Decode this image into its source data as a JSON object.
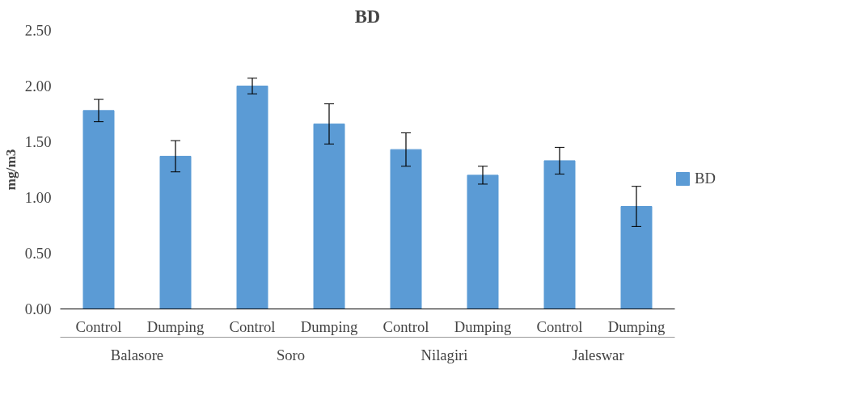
{
  "chart_data": {
    "type": "bar",
    "title": "BD",
    "ylabel": "mg/m3",
    "categories": [
      "Control",
      "Dumping",
      "Control",
      "Dumping",
      "Control",
      "Dumping",
      "Control",
      "Dumping"
    ],
    "annotations": [
      "Balasore",
      "Soro",
      "Nilagiri",
      "Jaleswar"
    ],
    "series": [
      {
        "name": "BD",
        "color": "#5b9bd5",
        "values": [
          1.78,
          1.37,
          2.0,
          1.66,
          1.43,
          1.2,
          1.33,
          0.92
        ],
        "errors": [
          0.1,
          0.14,
          0.07,
          0.18,
          0.15,
          0.08,
          0.12,
          0.18
        ]
      }
    ],
    "ylim": [
      0,
      2.5
    ],
    "yticks": [
      {
        "value": 0,
        "label": "0.00"
      },
      {
        "value": 0.5,
        "label": "0.50"
      },
      {
        "value": 1,
        "label": "1.00"
      },
      {
        "value": 1.5,
        "label": "1.50"
      },
      {
        "value": 2,
        "label": "2.00"
      },
      {
        "value": 2.5,
        "label": "2.50"
      }
    ],
    "grid": false,
    "legend": "right"
  }
}
